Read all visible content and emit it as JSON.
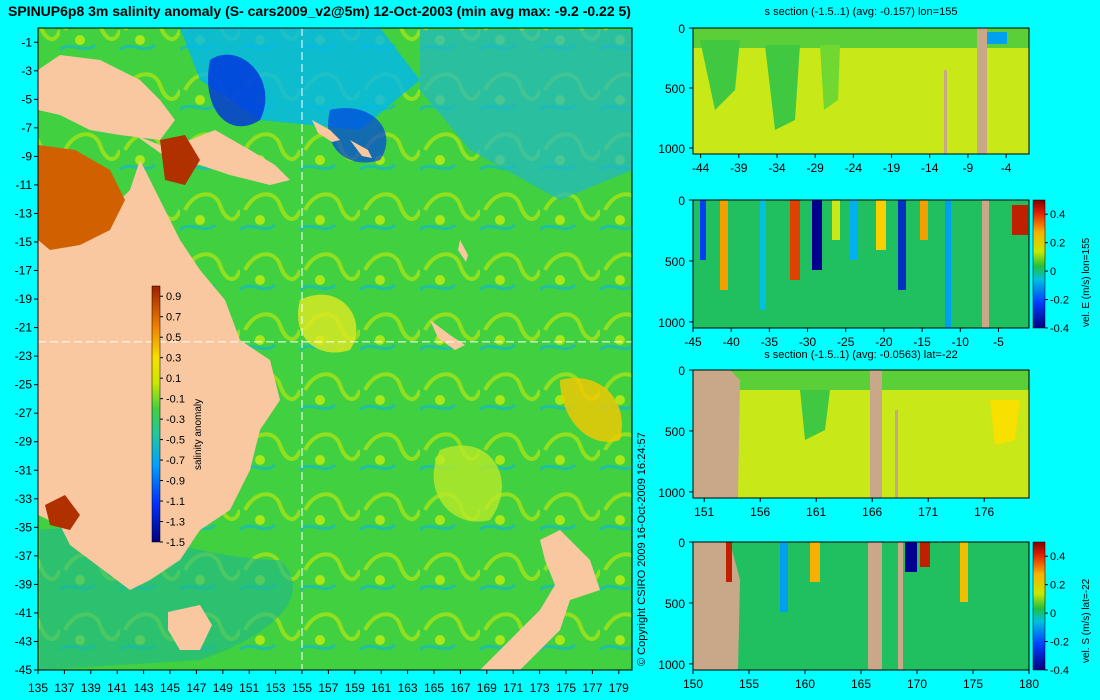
{
  "title": "SPINUP6p8 3m salinity anomaly (S- cars2009_v2@5m) 12-Oct-2003 (min avg max: -9.2 -0.22 5)",
  "copyright": "© Copyright CSIRO 2009  16-Oct-2009 16:24:57",
  "colors": {
    "background": "#00FFFF",
    "land": "#F9C8A0",
    "section_land": "#C8A888"
  },
  "chart_data": [
    {
      "type": "heatmap",
      "name": "map",
      "title": "SPINUP6p8 3m salinity anomaly (S- cars2009_v2@5m) 12-Oct-2003 (min avg max: -9.2 -0.22 5)",
      "xlim": [
        135,
        180
      ],
      "ylim": [
        -45,
        0
      ],
      "x_ticks": [
        "135",
        "137",
        "139",
        "141",
        "143",
        "145",
        "147",
        "149",
        "151",
        "153",
        "155",
        "157",
        "159",
        "161",
        "163",
        "165",
        "167",
        "169",
        "171",
        "173",
        "175",
        "177",
        "179"
      ],
      "y_ticks": [
        "-1",
        "-3",
        "-5",
        "-7",
        "-9",
        "-11",
        "-13",
        "-15",
        "-17",
        "-19",
        "-21",
        "-23",
        "-25",
        "-27",
        "-29",
        "-31",
        "-33",
        "-35",
        "-37",
        "-39",
        "-41",
        "-43",
        "-45"
      ],
      "colorbar": {
        "label": "salinity anomaly",
        "range": [
          -1.5,
          1.0
        ],
        "ticks": [
          "0.9",
          "0.7",
          "0.5",
          "0.3",
          "0.1",
          "-0.1",
          "-0.3",
          "-0.5",
          "-0.7",
          "-0.9",
          "-1.1",
          "-1.3",
          "-1.5"
        ]
      },
      "crosshair": {
        "lon": 155,
        "lat": -22
      }
    },
    {
      "type": "heatmap",
      "name": "salinity-section-lon155",
      "title": "s section (-1.5..1) (avg: -0.157) lon=155",
      "xlim": [
        -45,
        -1
      ],
      "ylim": [
        1050,
        0
      ],
      "x_ticks": [
        "-44",
        "-39",
        "-34",
        "-29",
        "-24",
        "-19",
        "-14",
        "-9",
        "-4"
      ],
      "y_ticks": [
        "0",
        "500",
        "1000"
      ]
    },
    {
      "type": "heatmap",
      "name": "velocity-east-section-lon155",
      "title": "",
      "xlim": [
        -45,
        -1
      ],
      "ylim": [
        1050,
        0
      ],
      "x_ticks": [
        "-45",
        "-40",
        "-35",
        "-30",
        "-25",
        "-20",
        "-15",
        "-10",
        "-5"
      ],
      "y_ticks": [
        "0",
        "500",
        "1000"
      ],
      "colorbar": {
        "label": "vel. E (m/s) lon=155",
        "range": [
          -0.4,
          0.5
        ],
        "ticks": [
          "0.4",
          "0.2",
          "0",
          "-0.2",
          "-0.4"
        ]
      }
    },
    {
      "type": "heatmap",
      "name": "salinity-section-lat-22",
      "title": "s section (-1.5..1) (avg: -0.0563) lat=-22",
      "xlim": [
        150,
        180
      ],
      "ylim": [
        1050,
        0
      ],
      "x_ticks": [
        "151",
        "156",
        "161",
        "166",
        "171",
        "176"
      ],
      "y_ticks": [
        "0",
        "500",
        "1000"
      ]
    },
    {
      "type": "heatmap",
      "name": "velocity-south-section-lat-22",
      "title": "",
      "xlim": [
        150,
        180
      ],
      "ylim": [
        1050,
        0
      ],
      "x_ticks": [
        "150",
        "155",
        "160",
        "165",
        "170",
        "175",
        "180"
      ],
      "y_ticks": [
        "0",
        "500",
        "1000"
      ],
      "colorbar": {
        "label": "vel. S (m/s) lat=-22",
        "range": [
          -0.4,
          0.5
        ],
        "ticks": [
          "0.4",
          "0.2",
          "0",
          "-0.2",
          "-0.4"
        ]
      }
    }
  ]
}
